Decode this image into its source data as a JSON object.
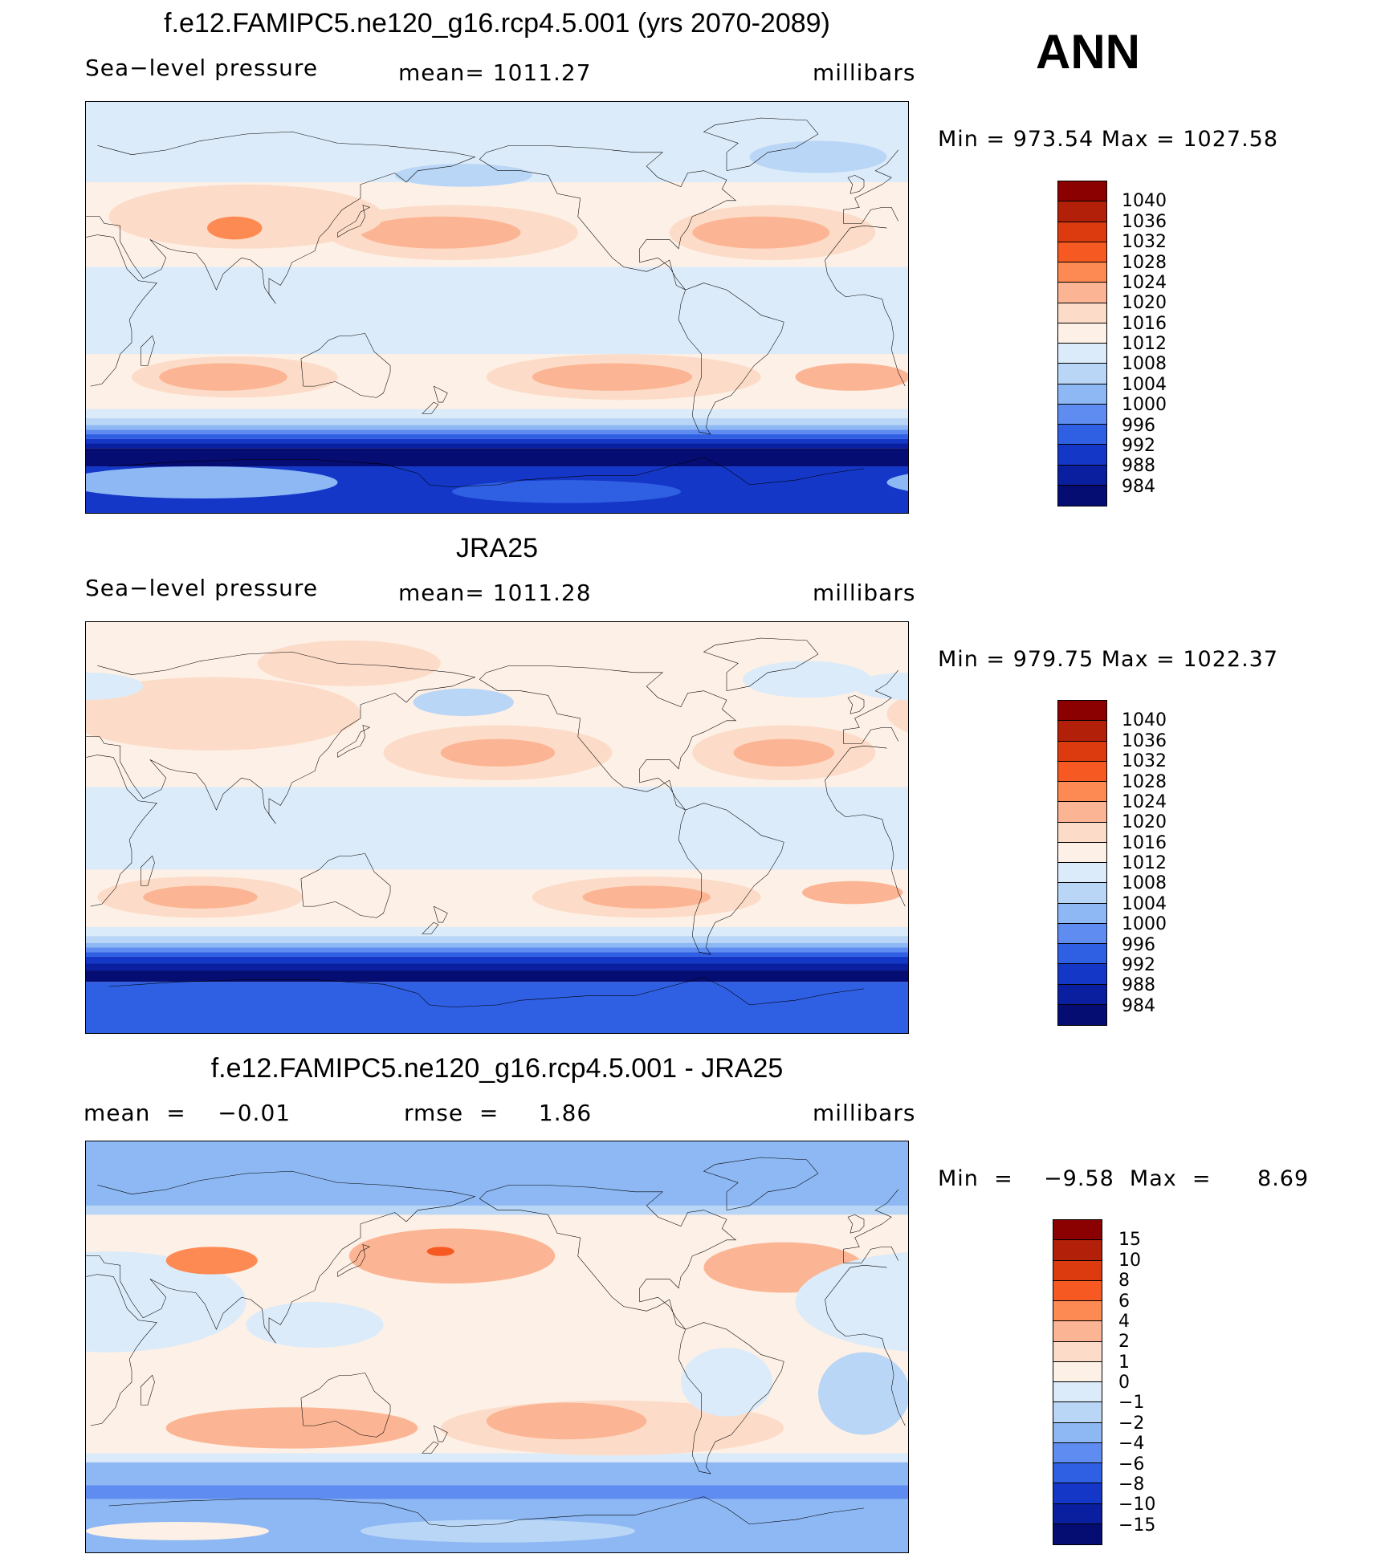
{
  "season": "ANN",
  "panels": [
    {
      "id": "model",
      "title": "f.e12.FAMIPC5.ne120_g16.rcp4.5.001 (yrs 2070-2089)",
      "left_text": "Sea−level pressure",
      "center_text": "mean=  1011.27",
      "right_text": "millibars",
      "minmax_text": "Min  =  973.54  Max  =  1027.58"
    },
    {
      "id": "obs",
      "title": "JRA25",
      "left_text": "Sea−level pressure",
      "center_text": "mean=  1011.28",
      "right_text": "millibars",
      "minmax_text": "Min  =  979.75  Max  =  1022.37"
    },
    {
      "id": "diff",
      "title": "f.e12.FAMIPC5.ne120_g16.rcp4.5.001 - JRA25",
      "left_text": "mean  =    −0.01",
      "center_text": "rmse  =     1.86",
      "right_text": "millibars",
      "minmax_text": "Min  =    −9.58  Max  =      8.69"
    }
  ],
  "colorbars": {
    "slp": {
      "labels": [
        "1040",
        "1036",
        "1032",
        "1028",
        "1024",
        "1020",
        "1016",
        "1012",
        "1008",
        "1004",
        "1000",
        "996",
        "992",
        "988",
        "984"
      ],
      "colors": [
        "#8b0000",
        "#b3200a",
        "#dc3a0f",
        "#f65a22",
        "#fd8a52",
        "#fcb594",
        "#fcdcc8",
        "#fdf0e6",
        "#dcebf9",
        "#b9d6f6",
        "#8db8f4",
        "#5e8cf0",
        "#2f5fe3",
        "#1437c8",
        "#0a1fa0",
        "#050d72"
      ]
    },
    "diff": {
      "labels": [
        "15",
        "10",
        "8",
        "6",
        "4",
        "2",
        "1",
        "0",
        "−1",
        "−2",
        "−4",
        "−6",
        "−8",
        "−10",
        "−15"
      ],
      "colors": [
        "#8b0000",
        "#b3200a",
        "#dc3a0f",
        "#f65a22",
        "#fd8a52",
        "#fcb594",
        "#fcdcc8",
        "#fdf0e6",
        "#dcebf9",
        "#b9d6f6",
        "#8db8f4",
        "#5e8cf0",
        "#2f5fe3",
        "#1437c8",
        "#0a1fa0",
        "#050d72"
      ]
    }
  },
  "map_fields": {
    "model": {
      "background": "#fdf0e6",
      "bands": [
        {
          "lat_top": 90,
          "lat_bottom": 62,
          "color": "#dcebf9"
        },
        {
          "lat_top": 62,
          "lat_bottom": 55,
          "color": "#dcebf9"
        },
        {
          "lat_top": 18,
          "lat_bottom": -20,
          "color": "#dcebf9"
        },
        {
          "lat_top": -38,
          "lat_bottom": -44,
          "color": "#fdf0e6"
        },
        {
          "lat_top": -44,
          "lat_bottom": -48,
          "color": "#dcebf9"
        },
        {
          "lat_top": -48,
          "lat_bottom": -51,
          "color": "#b9d6f6"
        },
        {
          "lat_top": -51,
          "lat_bottom": -53,
          "color": "#8db8f4"
        },
        {
          "lat_top": -53,
          "lat_bottom": -55,
          "color": "#5e8cf0"
        },
        {
          "lat_top": -55,
          "lat_bottom": -57,
          "color": "#2f5fe3"
        },
        {
          "lat_top": -57,
          "lat_bottom": -59,
          "color": "#1437c8"
        },
        {
          "lat_top": -59,
          "lat_bottom": -61,
          "color": "#0a1fa0"
        },
        {
          "lat_top": -61,
          "lat_bottom": -69,
          "color": "#050d72"
        },
        {
          "lat_top": -69,
          "lat_bottom": -90,
          "color": "#1437c8"
        }
      ],
      "blobs": [
        {
          "lon": 180,
          "lat": 33,
          "rlon": 55,
          "rlat": 12,
          "color": "#fcdcc8"
        },
        {
          "lon": 175,
          "lat": 33,
          "rlon": 35,
          "rlat": 7,
          "color": "#fcb594"
        },
        {
          "lon": 320,
          "lat": 33,
          "rlon": 45,
          "rlat": 12,
          "color": "#fcdcc8"
        },
        {
          "lon": 315,
          "lat": 33,
          "rlon": 30,
          "rlat": 7,
          "color": "#fcb594"
        },
        {
          "lon": 90,
          "lat": 40,
          "rlon": 60,
          "rlat": 14,
          "color": "#fcdcc8"
        },
        {
          "lon": 85,
          "lat": 35,
          "rlon": 12,
          "rlat": 5,
          "color": "#fd8a52"
        },
        {
          "lon": 85,
          "lat": -30,
          "rlon": 45,
          "rlat": 9,
          "color": "#fcdcc8"
        },
        {
          "lon": 80,
          "lat": -30,
          "rlon": 28,
          "rlat": 6,
          "color": "#fcb594"
        },
        {
          "lon": 255,
          "lat": -30,
          "rlon": 60,
          "rlat": 10,
          "color": "#fcdcc8"
        },
        {
          "lon": 250,
          "lat": -30,
          "rlon": 35,
          "rlat": 6,
          "color": "#fcb594"
        },
        {
          "lon": 355,
          "lat": -30,
          "rlon": 25,
          "rlat": 6,
          "color": "#fcb594"
        },
        {
          "lon": 185,
          "lat": 58,
          "rlon": 30,
          "rlat": 5,
          "color": "#b9d6f6"
        },
        {
          "lon": 340,
          "lat": 66,
          "rlon": 30,
          "rlat": 7,
          "color": "#b9d6f6"
        },
        {
          "lon": 70,
          "lat": -76,
          "rlon": 60,
          "rlat": 7,
          "color": "#8db8f4"
        },
        {
          "lon": 230,
          "lat": -80,
          "rlon": 50,
          "rlat": 5,
          "color": "#2f5fe3"
        }
      ]
    },
    "obs": {
      "background": "#fdf0e6",
      "bands": [
        {
          "lat_top": 90,
          "lat_bottom": 62,
          "color": "#fdf0e6"
        },
        {
          "lat_top": 18,
          "lat_bottom": -18,
          "color": "#dcebf9"
        },
        {
          "lat_top": -38,
          "lat_bottom": -43,
          "color": "#fdf0e6"
        },
        {
          "lat_top": -43,
          "lat_bottom": -47,
          "color": "#dcebf9"
        },
        {
          "lat_top": -47,
          "lat_bottom": -50,
          "color": "#b9d6f6"
        },
        {
          "lat_top": -50,
          "lat_bottom": -52,
          "color": "#8db8f4"
        },
        {
          "lat_top": -52,
          "lat_bottom": -54,
          "color": "#5e8cf0"
        },
        {
          "lat_top": -54,
          "lat_bottom": -56,
          "color": "#2f5fe3"
        },
        {
          "lat_top": -56,
          "lat_bottom": -59,
          "color": "#1437c8"
        },
        {
          "lat_top": -59,
          "lat_bottom": -62,
          "color": "#0a1fa0"
        },
        {
          "lat_top": -62,
          "lat_bottom": -67,
          "color": "#050d72"
        },
        {
          "lat_top": -67,
          "lat_bottom": -90,
          "color": "#2f5fe3"
        }
      ],
      "blobs": [
        {
          "lon": 200,
          "lat": 33,
          "rlon": 50,
          "rlat": 12,
          "color": "#fcdcc8"
        },
        {
          "lon": 200,
          "lat": 33,
          "rlon": 25,
          "rlat": 6,
          "color": "#fcb594"
        },
        {
          "lon": 325,
          "lat": 33,
          "rlon": 40,
          "rlat": 12,
          "color": "#fcdcc8"
        },
        {
          "lon": 325,
          "lat": 33,
          "rlon": 22,
          "rlat": 6,
          "color": "#fcb594"
        },
        {
          "lon": 75,
          "lat": 50,
          "rlon": 65,
          "rlat": 16,
          "color": "#fcdcc8"
        },
        {
          "lon": 70,
          "lat": -30,
          "rlon": 45,
          "rlat": 9,
          "color": "#fcdcc8"
        },
        {
          "lon": 70,
          "lat": -30,
          "rlon": 25,
          "rlat": 5,
          "color": "#fcb594"
        },
        {
          "lon": 265,
          "lat": -30,
          "rlon": 50,
          "rlat": 9,
          "color": "#fcdcc8"
        },
        {
          "lon": 265,
          "lat": -30,
          "rlon": 28,
          "rlat": 5,
          "color": "#fcb594"
        },
        {
          "lon": 355,
          "lat": -28,
          "rlon": 22,
          "rlat": 5,
          "color": "#fcb594"
        },
        {
          "lon": 185,
          "lat": 55,
          "rlon": 22,
          "rlat": 6,
          "color": "#b9d6f6"
        },
        {
          "lon": 335,
          "lat": 65,
          "rlon": 28,
          "rlat": 8,
          "color": "#dcebf9"
        },
        {
          "lon": 135,
          "lat": 72,
          "rlon": 40,
          "rlat": 10,
          "color": "#fcdcc8"
        },
        {
          "lon": 20,
          "lat": 62,
          "rlon": 25,
          "rlat": 6,
          "color": "#dcebf9"
        }
      ]
    },
    "diff": {
      "background": "#fdf0e6",
      "bands": [
        {
          "lat_top": 90,
          "lat_bottom": 62,
          "color": "#8db8f4"
        },
        {
          "lat_top": 62,
          "lat_bottom": 58,
          "color": "#b9d6f6"
        },
        {
          "lat_top": -46,
          "lat_bottom": -50,
          "color": "#dcebf9"
        },
        {
          "lat_top": -50,
          "lat_bottom": -60,
          "color": "#8db8f4"
        },
        {
          "lat_top": -60,
          "lat_bottom": -66,
          "color": "#5e8cf0"
        },
        {
          "lat_top": -66,
          "lat_bottom": -90,
          "color": "#8db8f4"
        }
      ],
      "blobs": [
        {
          "lon": 180,
          "lat": 40,
          "rlon": 45,
          "rlat": 12,
          "color": "#fcb594"
        },
        {
          "lon": 175,
          "lat": 42,
          "rlon": 6,
          "rlat": 2,
          "color": "#f65a22"
        },
        {
          "lon": 325,
          "lat": 35,
          "rlon": 35,
          "rlat": 11,
          "color": "#fcb594"
        },
        {
          "lon": 250,
          "lat": -35,
          "rlon": 75,
          "rlat": 12,
          "color": "#fcdcc8"
        },
        {
          "lon": 110,
          "lat": -35,
          "rlon": 55,
          "rlat": 9,
          "color": "#fcb594"
        },
        {
          "lon": 230,
          "lat": -32,
          "rlon": 35,
          "rlat": 8,
          "color": "#fcb594"
        },
        {
          "lon": 30,
          "lat": 20,
          "rlon": 60,
          "rlat": 22,
          "color": "#dcebf9"
        },
        {
          "lon": 75,
          "lat": 38,
          "rlon": 20,
          "rlat": 6,
          "color": "#fd8a52"
        },
        {
          "lon": 120,
          "lat": 10,
          "rlon": 30,
          "rlat": 10,
          "color": "#dcebf9"
        },
        {
          "lon": 300,
          "lat": -15,
          "rlon": 20,
          "rlat": 15,
          "color": "#dcebf9"
        },
        {
          "lon": 0,
          "lat": -20,
          "rlon": 20,
          "rlat": 18,
          "color": "#b9d6f6"
        },
        {
          "lon": 60,
          "lat": -80,
          "rlon": 40,
          "rlat": 4,
          "color": "#fdf0e6"
        },
        {
          "lon": 200,
          "lat": -80,
          "rlon": 60,
          "rlat": 5,
          "color": "#b9d6f6"
        }
      ]
    }
  }
}
